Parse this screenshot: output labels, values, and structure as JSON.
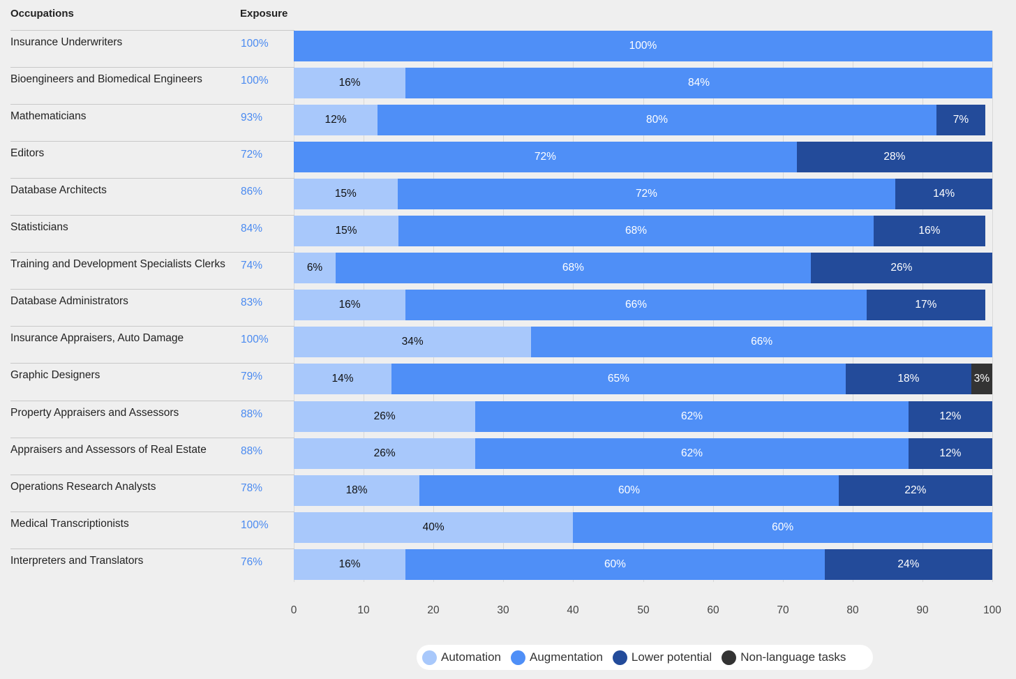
{
  "chart_data": {
    "type": "bar",
    "orientation": "horizontal",
    "stacked": true,
    "column_headers": {
      "occupations": "Occupations",
      "exposure": "Exposure"
    },
    "categories": [
      "Insurance Underwriters",
      "Bioengineers and Biomedical Engineers",
      "Mathematicians",
      "Editors",
      "Database Architects",
      "Statisticians",
      "Training and Development Specialists Clerks",
      "Database Administrators",
      "Insurance Appraisers, Auto Damage",
      "Graphic Designers",
      "Property Appraisers and Assessors",
      "Appraisers and Assessors of Real Estate",
      "Operations Research Analysts",
      "Medical Transcriptionists",
      "Interpreters and Translators"
    ],
    "exposure": [
      "100%",
      "100%",
      "93%",
      "72%",
      "86%",
      "84%",
      "74%",
      "83%",
      "100%",
      "79%",
      "88%",
      "88%",
      "78%",
      "100%",
      "76%"
    ],
    "series": [
      {
        "name": "Automation",
        "color": "#a8c8fb",
        "text_color": "#111111",
        "values": [
          0,
          16,
          12,
          0,
          15,
          15,
          6,
          16,
          34,
          14,
          26,
          26,
          18,
          40,
          16
        ]
      },
      {
        "name": "Augmentation",
        "color": "#4f8ff7",
        "text_color": "#ffffff",
        "values": [
          100,
          84,
          80,
          72,
          72,
          68,
          68,
          66,
          66,
          65,
          62,
          62,
          60,
          60,
          60
        ]
      },
      {
        "name": "Lower potential",
        "color": "#234b9a",
        "text_color": "#ffffff",
        "values": [
          0,
          0,
          7,
          28,
          14,
          16,
          26,
          17,
          0,
          18,
          12,
          12,
          22,
          0,
          24
        ]
      },
      {
        "name": "Non-language tasks",
        "color": "#333333",
        "text_color": "#ffffff",
        "values": [
          0,
          0,
          0,
          0,
          0,
          0,
          0,
          0,
          0,
          3,
          0,
          0,
          0,
          0,
          0
        ]
      }
    ],
    "xlim": [
      0,
      100
    ],
    "xticks": [
      "0",
      "10",
      "20",
      "30",
      "40",
      "50",
      "60",
      "70",
      "80",
      "90",
      "100"
    ],
    "legend_position": "bottom-center",
    "grid": true
  }
}
